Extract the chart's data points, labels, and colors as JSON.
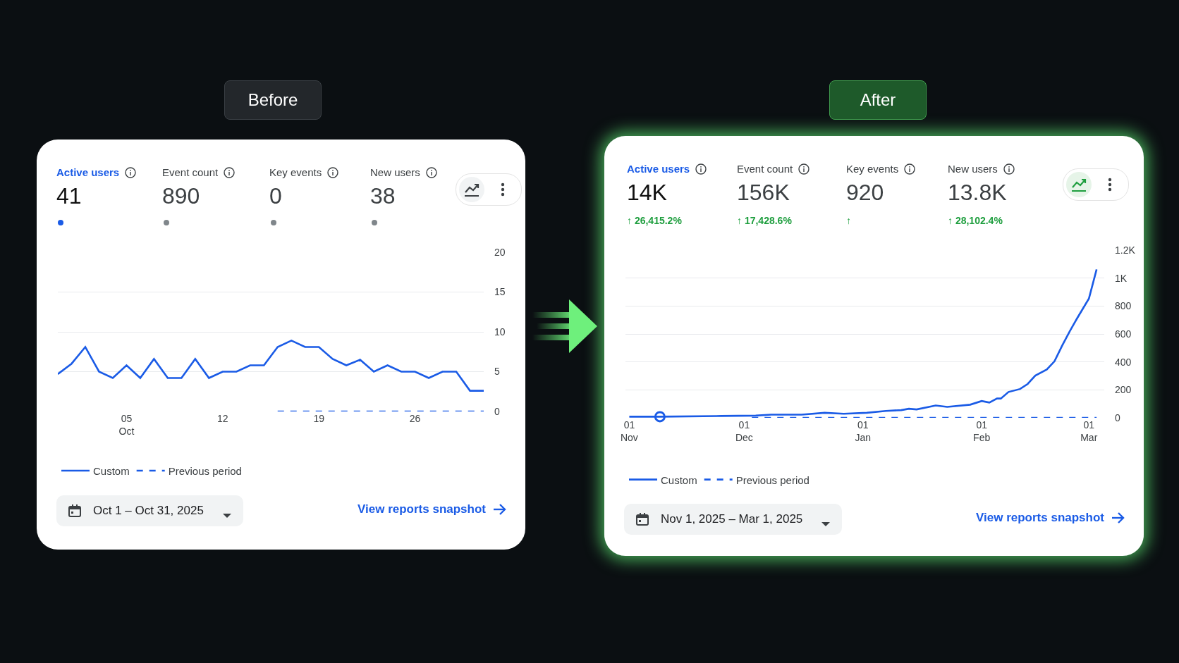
{
  "chart_data": [
    {
      "type": "other",
      "title": "Before",
      "categories": [
        "Active users",
        "Event count",
        "Key events",
        "New users"
      ],
      "value_labels": [
        "41",
        "890",
        "0",
        "38"
      ]
    },
    {
      "type": "line",
      "grid": "y",
      "legend": "bottom left",
      "xlim": [
        "2025-09-30",
        "2025-10-31"
      ],
      "xticks": [
        {
          "value": "2025-10-05",
          "label": "05\nOct"
        },
        {
          "value": "2025-10-12",
          "label": "12"
        },
        {
          "value": "2025-10-19",
          "label": "19"
        },
        {
          "value": "2025-10-26",
          "label": "26"
        }
      ],
      "ylim": [
        0,
        20
      ],
      "yticks": [
        0,
        5,
        10,
        15,
        20
      ],
      "annotations": [
        "Oct 1 – Oct 31, 2025",
        "View reports snapshot"
      ],
      "series": [
        {
          "name": "Custom",
          "color": "#1a5be6",
          "line_style": "solid",
          "x": [
            "2025-09-30",
            "2025-10-01",
            "2025-10-02",
            "2025-10-03",
            "2025-10-04",
            "2025-10-05",
            "2025-10-06",
            "2025-10-07",
            "2025-10-08",
            "2025-10-09",
            "2025-10-10",
            "2025-10-11",
            "2025-10-12",
            "2025-10-13",
            "2025-10-14",
            "2025-10-15",
            "2025-10-16",
            "2025-10-17",
            "2025-10-18",
            "2025-10-19",
            "2025-10-20",
            "2025-10-21",
            "2025-10-22",
            "2025-10-23",
            "2025-10-24",
            "2025-10-25",
            "2025-10-26",
            "2025-10-27",
            "2025-10-28",
            "2025-10-29",
            "2025-10-30",
            "2025-10-31"
          ],
          "values": [
            4.7,
            6,
            8.1,
            5,
            4.2,
            5.8,
            4.2,
            6.6,
            4.2,
            4.2,
            6.6,
            4.2,
            5,
            5,
            5.8,
            5.8,
            8.1,
            8.9,
            8.1,
            8.1,
            6.6,
            5.8,
            6.5,
            5,
            5.8,
            5,
            5,
            4.2,
            5,
            5,
            2.6,
            2.6
          ]
        },
        {
          "name": "Previous period",
          "color": "#1a5be6",
          "line_style": "dashed",
          "x": [
            "2025-10-16",
            "2025-10-31"
          ],
          "values": [
            0,
            0
          ]
        }
      ]
    },
    {
      "type": "other",
      "title": "After",
      "categories": [
        "Active users",
        "Event count",
        "Key events",
        "New users"
      ],
      "value_labels": [
        "14K",
        "156K",
        "920",
        "13.8K"
      ],
      "annotations": [
        "↑ 26,415.2%",
        "↑ 17,428.6%",
        "↑",
        "↑ 28,102.4%"
      ]
    },
    {
      "type": "line",
      "grid": "y",
      "legend": "bottom left",
      "xlim": [
        "2025-10-31",
        "2026-03-05"
      ],
      "xticks": [
        {
          "value": "2025-11-01",
          "label": "01\nNov"
        },
        {
          "value": "2025-12-01",
          "label": "01\nDec"
        },
        {
          "value": "2026-01-01",
          "label": "01\nJan"
        },
        {
          "value": "2026-02-01",
          "label": "01\nFeb"
        },
        {
          "value": "2026-03-01",
          "label": "01\nMar"
        }
      ],
      "ylim": [
        0,
        1200
      ],
      "yticks": [
        0,
        200,
        400,
        600,
        800,
        {
          "value": 1000,
          "label": "1K"
        },
        {
          "value": 1200,
          "label": "1.2K"
        }
      ],
      "annotations": [
        "Nov 1, 2025 – Mar 1, 2025",
        "View reports snapshot"
      ],
      "series": [
        {
          "name": "Custom",
          "color": "#1a5be6",
          "line_style": "solid",
          "x": [
            "2025-11-01",
            "2025-11-09",
            "2025-11-25",
            "2025-12-04",
            "2025-12-08",
            "2025-12-16",
            "2025-12-22",
            "2025-12-27",
            "2026-01-02",
            "2026-01-07",
            "2026-01-11",
            "2026-01-13",
            "2026-01-15",
            "2026-01-20",
            "2026-01-23",
            "2026-01-29",
            "2026-02-01",
            "2026-02-03",
            "2026-02-05",
            "2026-02-06",
            "2026-02-08",
            "2026-02-11",
            "2026-02-13",
            "2026-02-15",
            "2026-02-18",
            "2026-02-20",
            "2026-02-22",
            "2026-02-24",
            "2026-02-26",
            "2026-03-01",
            "2026-03-03"
          ],
          "values": [
            8,
            8,
            13,
            16,
            23,
            23,
            36,
            29,
            36,
            49,
            55,
            65,
            60,
            88,
            78,
            94,
            120,
            109,
            138,
            138,
            185,
            206,
            242,
            302,
            346,
            404,
            516,
            620,
            716,
            854,
            1062
          ]
        },
        {
          "name": "Previous period",
          "color": "#1a5be6",
          "line_style": "dashed",
          "x": [
            "2025-12-03",
            "2026-03-03"
          ],
          "values": [
            0,
            0
          ]
        },
        {
          "type": "scatter",
          "color": "#1a5be6",
          "marker": "circle",
          "x": [
            "2025-11-09"
          ],
          "values": [
            8
          ]
        }
      ]
    }
  ]
}
